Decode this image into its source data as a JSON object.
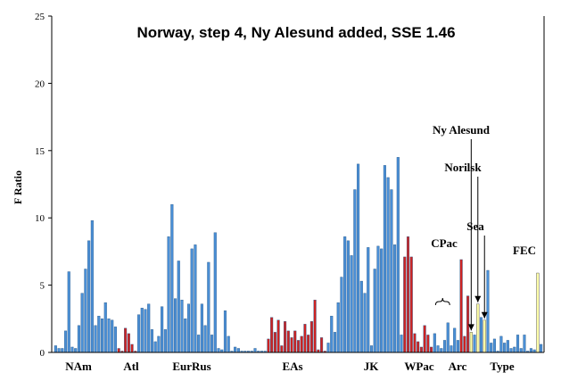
{
  "chart_data": {
    "type": "bar",
    "title": "Norway, step 4, Ny Alesund added, SSE 1.46",
    "ylabel": "F Ratio",
    "xlabel": "",
    "ylim": [
      0,
      25
    ],
    "yticks": [
      0,
      5,
      10,
      15,
      20,
      25
    ],
    "grid": false,
    "legend": "none",
    "colors": {
      "blue": "#4a8fd6",
      "red": "#cc2222",
      "yellow": "#ffffa8",
      "outline": "#2a5a8a"
    },
    "group_labels": [
      "NAm",
      "Atl",
      "EurRus",
      "EAs",
      "JK",
      "WPac",
      "Arc",
      "Type"
    ],
    "annotations": [
      "Ny Alesund",
      "Norilsk",
      "Sea",
      "CPac",
      "FEC"
    ],
    "groups": [
      {
        "label": "NAm",
        "color": "blue",
        "values": [
          0.5,
          0.3,
          0.3,
          1.6,
          6.0,
          0.4,
          0.3,
          2.0,
          4.4,
          6.2,
          8.3,
          9.8,
          2.0,
          2.7,
          2.5,
          3.7,
          2.5,
          2.4,
          1.9
        ]
      },
      {
        "label": "Atl",
        "color": "red",
        "values": [
          0.3,
          0.1,
          1.8,
          1.4,
          0.6,
          0.1
        ]
      },
      {
        "label": "EurRus",
        "color": "blue",
        "values": [
          2.8,
          3.3,
          3.2,
          3.6,
          1.7,
          0.8,
          1.2,
          3.4,
          1.7,
          8.6,
          11.0,
          4.0,
          6.8,
          3.9,
          2.5,
          3.6,
          7.7,
          8.0,
          1.3,
          3.6,
          2.0,
          6.7,
          1.3,
          8.9,
          0.3,
          0.2,
          3.1,
          1.2
        ]
      },
      {
        "label": "EAs",
        "color": "blue",
        "values": [
          0.1,
          0.4,
          0.3,
          0.1,
          0.1,
          0.1,
          0.1,
          0.3,
          0.1,
          0.1,
          0.1
        ]
      },
      {
        "label": "EAs",
        "color": "red",
        "values": [
          1.0,
          2.6,
          1.5,
          2.4,
          0.5,
          2.3,
          1.6,
          1.1,
          1.6,
          0.9,
          1.2,
          2.1,
          1.3,
          2.3,
          3.9,
          0.2,
          1.1,
          0.1
        ]
      },
      {
        "label": "JK",
        "color": "blue",
        "values": [
          0.7,
          2.7,
          1.5,
          3.7,
          5.6,
          8.6,
          8.3,
          7.2,
          12.1,
          14.0,
          5.3,
          4.4,
          7.8,
          0.5,
          6.2,
          7.9,
          7.7,
          13.9,
          13.0,
          12.1,
          8.0,
          14.5,
          1.3
        ]
      },
      {
        "label": "WPac",
        "color": "red",
        "values": [
          7.1,
          8.6,
          7.1,
          1.4,
          0.8,
          0.4,
          2.0,
          1.3,
          0.4
        ]
      },
      {
        "label": "CPac",
        "color": "blue",
        "values": [
          1.4,
          0.5,
          0.3,
          0.9,
          2.2,
          0.5,
          1.8,
          0.9
        ]
      },
      {
        "label": "Arc",
        "color": "red",
        "values": [
          6.9,
          1.2,
          4.2
        ]
      },
      {
        "label": "Ny Alesund",
        "color": "yellow",
        "values": [
          1.5
        ]
      },
      {
        "label": "Arc",
        "color": "blue",
        "values": [
          1.3
        ]
      },
      {
        "label": "Norilsk",
        "color": "yellow",
        "values": [
          3.6
        ]
      },
      {
        "label": "Arc",
        "color": "blue",
        "values": [
          2.6
        ]
      },
      {
        "label": "Sea",
        "color": "yellow",
        "values": [
          2.4
        ]
      },
      {
        "label": "Arc",
        "color": "blue",
        "values": [
          6.1,
          0.7,
          1.0,
          0.1,
          1.2,
          0.7,
          0.9,
          0.3,
          0.4,
          1.3,
          0.3,
          1.3,
          0.1,
          0.3,
          0.2
        ]
      },
      {
        "label": "FEC",
        "color": "yellow",
        "values": [
          5.9
        ]
      },
      {
        "label": "Type",
        "color": "blue",
        "values": [
          0.6
        ]
      }
    ]
  }
}
